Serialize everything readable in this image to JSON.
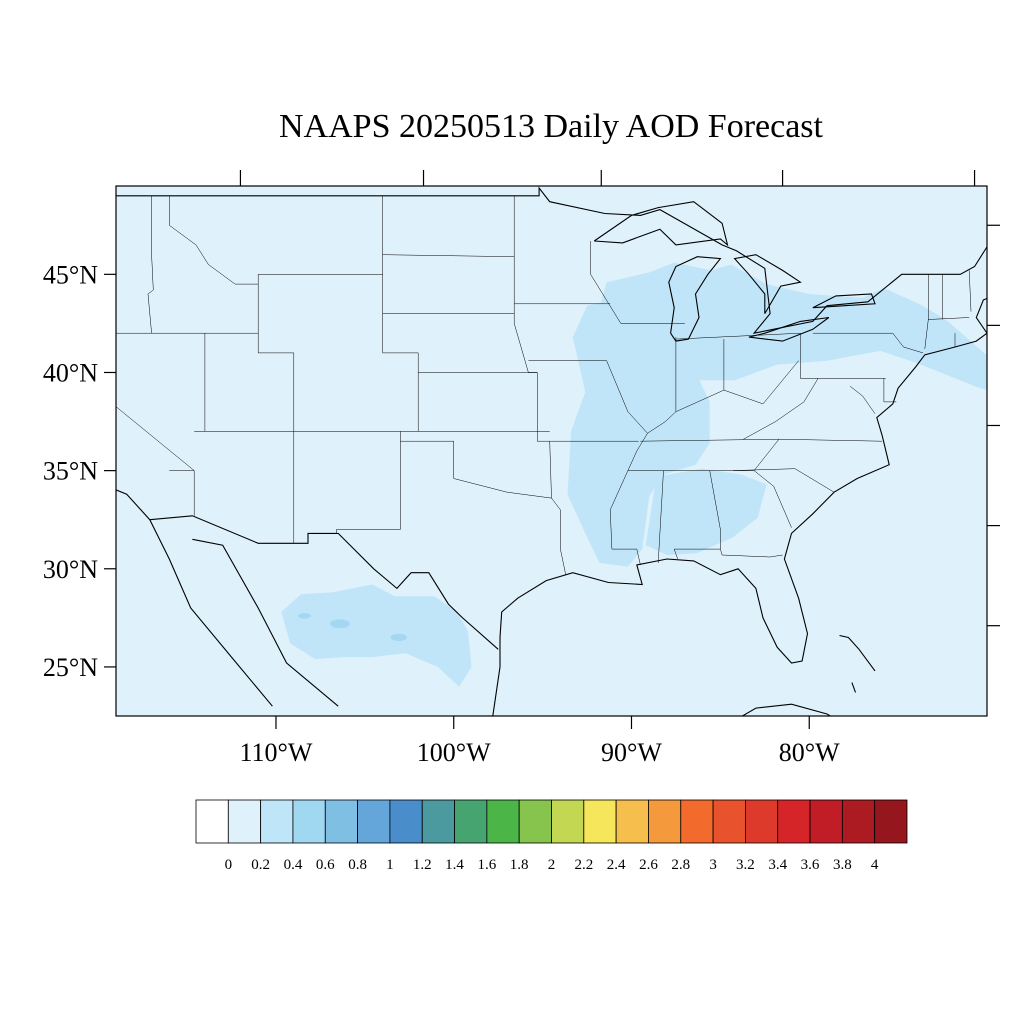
{
  "title": "NAAPS 20250513 Daily AOD Forecast",
  "map": {
    "projection": "lat-lon",
    "lon_range": [
      -119,
      -70
    ],
    "lat_range": [
      22.5,
      49.5
    ],
    "background_color": "#dff1fb",
    "light_aod_color": "#c0e5f8",
    "medium_aod_color": "#a3d7f2",
    "boundary_color": "#000000",
    "lat_ticks": [
      {
        "value": 45,
        "label": "45°N"
      },
      {
        "value": 40,
        "label": "40°N"
      },
      {
        "value": 35,
        "label": "35°N"
      },
      {
        "value": 30,
        "label": "30°N"
      },
      {
        "value": 25,
        "label": "25°N"
      }
    ],
    "lon_ticks": [
      {
        "value": -110,
        "label": "110°W"
      },
      {
        "value": -100,
        "label": "100°W"
      },
      {
        "value": -90,
        "label": "90°W"
      },
      {
        "value": -80,
        "label": "80°W"
      }
    ],
    "aod_regions": [
      {
        "name": "mississippi-valley",
        "level": "0.2-0.4"
      },
      {
        "name": "great-lakes-northeast",
        "level": "0.2-0.4"
      },
      {
        "name": "northern-mexico",
        "level": "0.2-0.4"
      },
      {
        "name": "southeast",
        "level": "0.2-0.4"
      }
    ]
  },
  "colorbar": {
    "colors": [
      "#ffffff",
      "#dff1fb",
      "#bfe5f8",
      "#a0d8f2",
      "#80bfe4",
      "#64a6da",
      "#4a8dcb",
      "#4a9aa0",
      "#46a470",
      "#4cb548",
      "#86c44e",
      "#c3d753",
      "#f6e65b",
      "#f6be4c",
      "#f59a3c",
      "#f26b2c",
      "#e8522c",
      "#de3a2b",
      "#d52529",
      "#c11d26",
      "#ac1a22",
      "#96161d"
    ],
    "labels": [
      "0",
      "0.2",
      "0.4",
      "0.6",
      "0.8",
      "1",
      "1.2",
      "1.4",
      "1.6",
      "1.8",
      "2",
      "2.2",
      "2.4",
      "2.6",
      "2.8",
      "3",
      "3.2",
      "3.4",
      "3.6",
      "3.8",
      "4"
    ]
  }
}
